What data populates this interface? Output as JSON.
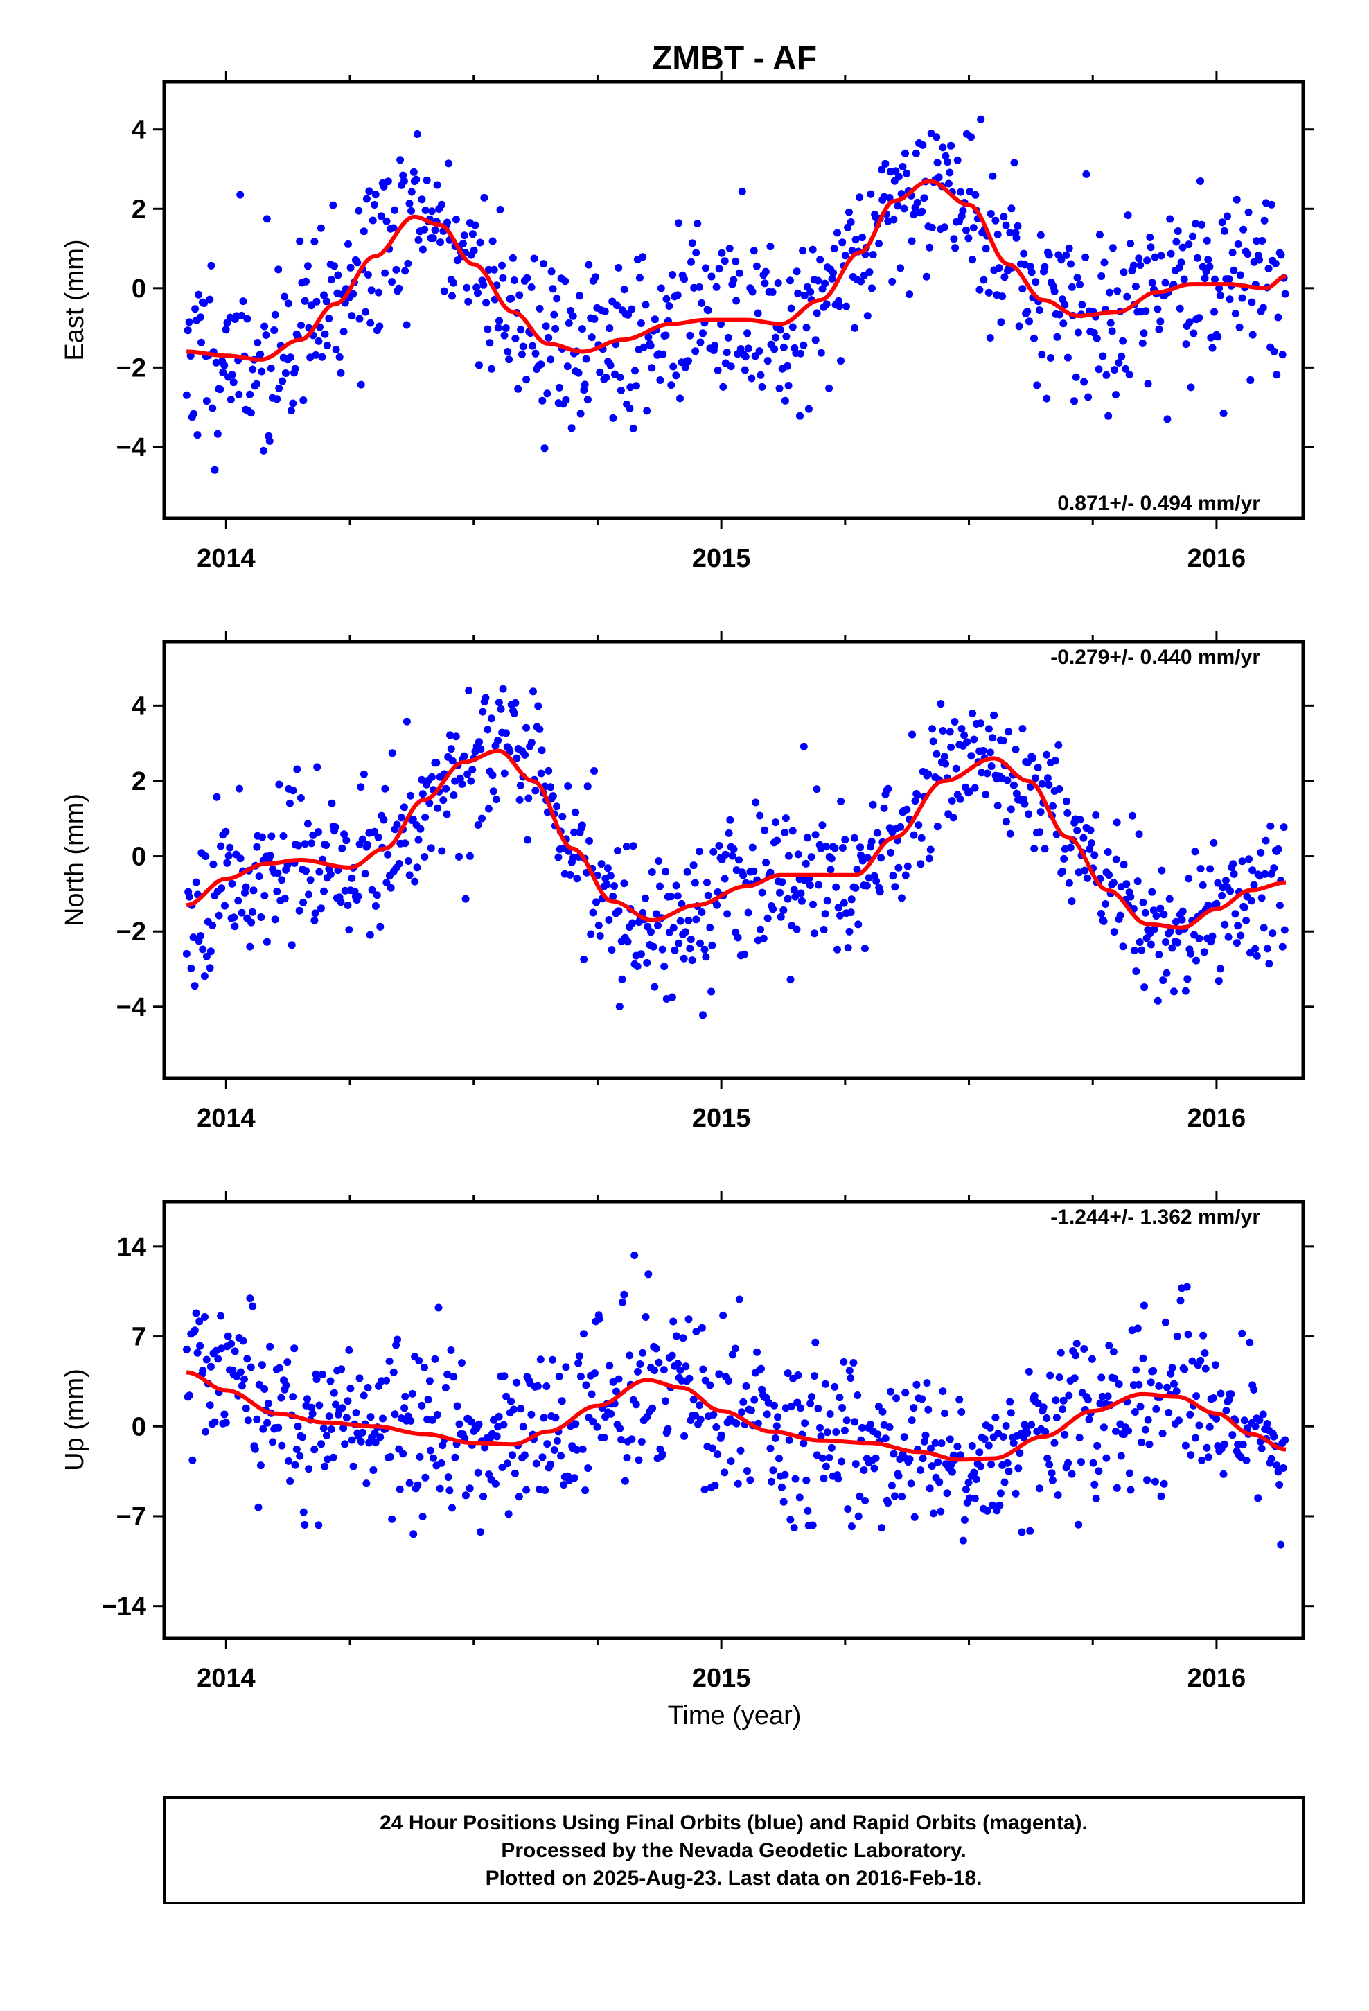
{
  "title": "ZMBT - AF",
  "xlabel": "Time (year)",
  "footer": {
    "line1": "24 Hour Positions Using Final Orbits (blue) and Rapid Orbits (magenta).",
    "line2": "Processed by the Nevada Geodetic Laboratory.",
    "line3": "Plotted on 2025-Aug-23. Last data on 2016-Feb-18."
  },
  "colors": {
    "final_points": "#0000ff",
    "model_curve": "#ff0000",
    "frame": "#000000"
  },
  "chart_data": [
    {
      "type": "scatter",
      "ylabel": "East (mm)",
      "rate_text": "0.871+/- 0.494 mm/yr",
      "rate_position": "bottom-right",
      "xlim": [
        2013.875,
        2016.175
      ],
      "ylim": [
        -5.8,
        5.2
      ],
      "yticks": [
        -4,
        -2,
        0,
        2,
        4
      ],
      "yticklabels": [
        "−4",
        "−2",
        "0",
        "2",
        "4"
      ],
      "xticks": [
        2014,
        2015,
        2016
      ],
      "xticklabels": [
        "2014",
        "2015",
        "2016"
      ],
      "grid": false,
      "series": [
        {
          "style": "points",
          "knots": [
            [
              2013.92,
              -1.6
            ],
            [
              2014.0,
              -1.7
            ],
            [
              2014.07,
              -1.8
            ],
            [
              2014.15,
              -1.3
            ],
            [
              2014.22,
              -0.4
            ],
            [
              2014.3,
              0.8
            ],
            [
              2014.38,
              1.8
            ],
            [
              2014.43,
              1.6
            ],
            [
              2014.5,
              0.6
            ],
            [
              2014.58,
              -0.6
            ],
            [
              2014.65,
              -1.4
            ],
            [
              2014.72,
              -1.6
            ],
            [
              2014.8,
              -1.3
            ],
            [
              2014.9,
              -0.9
            ],
            [
              2014.97,
              -0.8
            ],
            [
              2015.05,
              -0.8
            ],
            [
              2015.12,
              -0.9
            ],
            [
              2015.2,
              -0.3
            ],
            [
              2015.28,
              0.9
            ],
            [
              2015.35,
              2.2
            ],
            [
              2015.42,
              2.7
            ],
            [
              2015.5,
              2.1
            ],
            [
              2015.58,
              0.6
            ],
            [
              2015.65,
              -0.3
            ],
            [
              2015.72,
              -0.7
            ],
            [
              2015.8,
              -0.6
            ],
            [
              2015.88,
              -0.1
            ],
            [
              2015.95,
              0.1
            ],
            [
              2016.02,
              0.1
            ],
            [
              2016.1,
              0.0
            ],
            [
              2016.14,
              0.3
            ]
          ],
          "scatter_sd": 1.15,
          "count": 820,
          "seed": 11
        },
        {
          "style": "curve",
          "points": [
            [
              2013.92,
              -1.6
            ],
            [
              2014.0,
              -1.7
            ],
            [
              2014.07,
              -1.8
            ],
            [
              2014.15,
              -1.3
            ],
            [
              2014.22,
              -0.4
            ],
            [
              2014.3,
              0.8
            ],
            [
              2014.38,
              1.8
            ],
            [
              2014.43,
              1.6
            ],
            [
              2014.5,
              0.6
            ],
            [
              2014.58,
              -0.6
            ],
            [
              2014.65,
              -1.4
            ],
            [
              2014.72,
              -1.6
            ],
            [
              2014.8,
              -1.3
            ],
            [
              2014.9,
              -0.9
            ],
            [
              2014.97,
              -0.8
            ],
            [
              2015.05,
              -0.8
            ],
            [
              2015.12,
              -0.9
            ],
            [
              2015.2,
              -0.3
            ],
            [
              2015.28,
              0.9
            ],
            [
              2015.35,
              2.2
            ],
            [
              2015.42,
              2.7
            ],
            [
              2015.5,
              2.1
            ],
            [
              2015.58,
              0.6
            ],
            [
              2015.65,
              -0.3
            ],
            [
              2015.72,
              -0.7
            ],
            [
              2015.8,
              -0.6
            ],
            [
              2015.88,
              -0.1
            ],
            [
              2015.95,
              0.1
            ],
            [
              2016.02,
              0.1
            ],
            [
              2016.1,
              0.0
            ],
            [
              2016.14,
              0.3
            ]
          ]
        }
      ]
    },
    {
      "type": "scatter",
      "ylabel": "North (mm)",
      "rate_text": "-0.279+/- 0.440 mm/yr",
      "rate_position": "top-right",
      "xlim": [
        2013.875,
        2016.175
      ],
      "ylim": [
        -5.9,
        5.7
      ],
      "yticks": [
        -4,
        -2,
        0,
        2,
        4
      ],
      "yticklabels": [
        "−4",
        "−2",
        "0",
        "2",
        "4"
      ],
      "xticks": [
        2014,
        2015,
        2016
      ],
      "xticklabels": [
        "2014",
        "2015",
        "2016"
      ],
      "grid": false,
      "series": [
        {
          "style": "points",
          "knots": [
            [
              2013.92,
              -1.3
            ],
            [
              2014.0,
              -0.6
            ],
            [
              2014.08,
              -0.2
            ],
            [
              2014.15,
              -0.1
            ],
            [
              2014.25,
              -0.3
            ],
            [
              2014.32,
              0.2
            ],
            [
              2014.4,
              1.5
            ],
            [
              2014.48,
              2.5
            ],
            [
              2014.55,
              2.8
            ],
            [
              2014.62,
              2.0
            ],
            [
              2014.7,
              0.2
            ],
            [
              2014.78,
              -1.2
            ],
            [
              2014.86,
              -1.7
            ],
            [
              2014.95,
              -1.3
            ],
            [
              2015.05,
              -0.8
            ],
            [
              2015.12,
              -0.5
            ],
            [
              2015.2,
              -0.5
            ],
            [
              2015.27,
              -0.5
            ],
            [
              2015.35,
              0.5
            ],
            [
              2015.45,
              2.0
            ],
            [
              2015.55,
              2.6
            ],
            [
              2015.62,
              2.0
            ],
            [
              2015.7,
              0.5
            ],
            [
              2015.78,
              -0.9
            ],
            [
              2015.86,
              -1.8
            ],
            [
              2015.93,
              -1.9
            ],
            [
              2016.0,
              -1.4
            ],
            [
              2016.07,
              -0.9
            ],
            [
              2016.14,
              -0.7
            ]
          ],
          "scatter_sd": 1.0,
          "count": 820,
          "seed": 23
        },
        {
          "style": "curve",
          "points": [
            [
              2013.92,
              -1.3
            ],
            [
              2014.0,
              -0.6
            ],
            [
              2014.08,
              -0.2
            ],
            [
              2014.15,
              -0.1
            ],
            [
              2014.25,
              -0.3
            ],
            [
              2014.32,
              0.2
            ],
            [
              2014.4,
              1.5
            ],
            [
              2014.48,
              2.5
            ],
            [
              2014.55,
              2.8
            ],
            [
              2014.62,
              2.0
            ],
            [
              2014.7,
              0.2
            ],
            [
              2014.78,
              -1.2
            ],
            [
              2014.86,
              -1.7
            ],
            [
              2014.95,
              -1.3
            ],
            [
              2015.05,
              -0.8
            ],
            [
              2015.12,
              -0.5
            ],
            [
              2015.2,
              -0.5
            ],
            [
              2015.27,
              -0.5
            ],
            [
              2015.35,
              0.5
            ],
            [
              2015.45,
              2.0
            ],
            [
              2015.55,
              2.6
            ],
            [
              2015.62,
              2.0
            ],
            [
              2015.7,
              0.5
            ],
            [
              2015.78,
              -0.9
            ],
            [
              2015.86,
              -1.8
            ],
            [
              2015.93,
              -1.9
            ],
            [
              2016.0,
              -1.4
            ],
            [
              2016.07,
              -0.9
            ],
            [
              2016.14,
              -0.7
            ]
          ]
        }
      ]
    },
    {
      "type": "scatter",
      "ylabel": "Up (mm)",
      "rate_text": "-1.244+/- 1.362 mm/yr",
      "rate_position": "top-right",
      "xlim": [
        2013.875,
        2016.175
      ],
      "ylim": [
        -16.5,
        17.5
      ],
      "yticks": [
        -14,
        -7,
        0,
        7,
        14
      ],
      "yticklabels": [
        "−14",
        "−7",
        "0",
        "7",
        "14"
      ],
      "xticks": [
        2014,
        2015,
        2016
      ],
      "xticklabels": [
        "2014",
        "2015",
        "2016"
      ],
      "grid": false,
      "series": [
        {
          "style": "points",
          "knots": [
            [
              2013.92,
              4.2
            ],
            [
              2014.0,
              2.8
            ],
            [
              2014.1,
              1.0
            ],
            [
              2014.2,
              0.3
            ],
            [
              2014.3,
              0.0
            ],
            [
              2014.4,
              -0.6
            ],
            [
              2014.5,
              -1.3
            ],
            [
              2014.58,
              -1.4
            ],
            [
              2014.65,
              -0.4
            ],
            [
              2014.75,
              1.6
            ],
            [
              2014.85,
              3.6
            ],
            [
              2014.92,
              3.0
            ],
            [
              2015.0,
              1.2
            ],
            [
              2015.1,
              -0.4
            ],
            [
              2015.2,
              -1.1
            ],
            [
              2015.3,
              -1.3
            ],
            [
              2015.4,
              -2.0
            ],
            [
              2015.48,
              -2.6
            ],
            [
              2015.55,
              -2.5
            ],
            [
              2015.65,
              -0.8
            ],
            [
              2015.75,
              1.2
            ],
            [
              2015.85,
              2.5
            ],
            [
              2015.92,
              2.3
            ],
            [
              2016.0,
              1.0
            ],
            [
              2016.07,
              -0.6
            ],
            [
              2016.14,
              -1.8
            ]
          ],
          "scatter_sd": 3.3,
          "count": 820,
          "seed": 37
        },
        {
          "style": "curve",
          "points": [
            [
              2013.92,
              4.2
            ],
            [
              2014.0,
              2.8
            ],
            [
              2014.1,
              1.0
            ],
            [
              2014.2,
              0.3
            ],
            [
              2014.3,
              0.0
            ],
            [
              2014.4,
              -0.6
            ],
            [
              2014.5,
              -1.3
            ],
            [
              2014.58,
              -1.4
            ],
            [
              2014.65,
              -0.4
            ],
            [
              2014.75,
              1.6
            ],
            [
              2014.85,
              3.6
            ],
            [
              2014.92,
              3.0
            ],
            [
              2015.0,
              1.2
            ],
            [
              2015.1,
              -0.4
            ],
            [
              2015.2,
              -1.1
            ],
            [
              2015.3,
              -1.3
            ],
            [
              2015.4,
              -2.0
            ],
            [
              2015.48,
              -2.6
            ],
            [
              2015.55,
              -2.5
            ],
            [
              2015.65,
              -0.8
            ],
            [
              2015.75,
              1.2
            ],
            [
              2015.85,
              2.5
            ],
            [
              2015.92,
              2.3
            ],
            [
              2016.0,
              1.0
            ],
            [
              2016.07,
              -0.6
            ],
            [
              2016.14,
              -1.8
            ]
          ]
        }
      ]
    }
  ]
}
